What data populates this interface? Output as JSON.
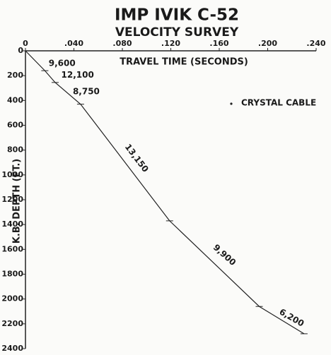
{
  "chart_data": {
    "type": "line",
    "title": "IMP IVIK C-52",
    "subtitle": "VELOCITY SURVEY",
    "x_label": "TRAVEL TIME (SECONDS)",
    "y_label": "K.B. DEPTH (FT.)",
    "y_inverted": true,
    "x": [
      0,
      0.016,
      0.0245,
      0.0455,
      0.119,
      0.193,
      0.23
    ],
    "series": [
      {
        "name": "CRYSTAL CABLE",
        "color": "#222222",
        "values": [
          0,
          160,
          255,
          430,
          1370,
          2060,
          2280
        ]
      }
    ],
    "segment_labels": [
      "9,600",
      "12,100",
      "8,750",
      "13,150",
      "9,900",
      "6,200"
    ],
    "xlim": [
      0,
      0.24
    ],
    "xticks": [
      0,
      {
        "value": 0.04,
        "label": ".040"
      },
      {
        "value": 0.08,
        "label": ".080"
      },
      {
        "value": 0.12,
        "label": ".120"
      },
      {
        "value": 0.16,
        "label": ".160"
      },
      {
        "value": 0.2,
        "label": ".200"
      },
      {
        "value": 0.24,
        "label": ".240"
      }
    ],
    "ylim": [
      0,
      2400
    ],
    "yticks": [
      0,
      200,
      400,
      600,
      800,
      1000,
      1200,
      1400,
      1600,
      1800,
      2000,
      2200,
      2400
    ],
    "grid": false
  }
}
